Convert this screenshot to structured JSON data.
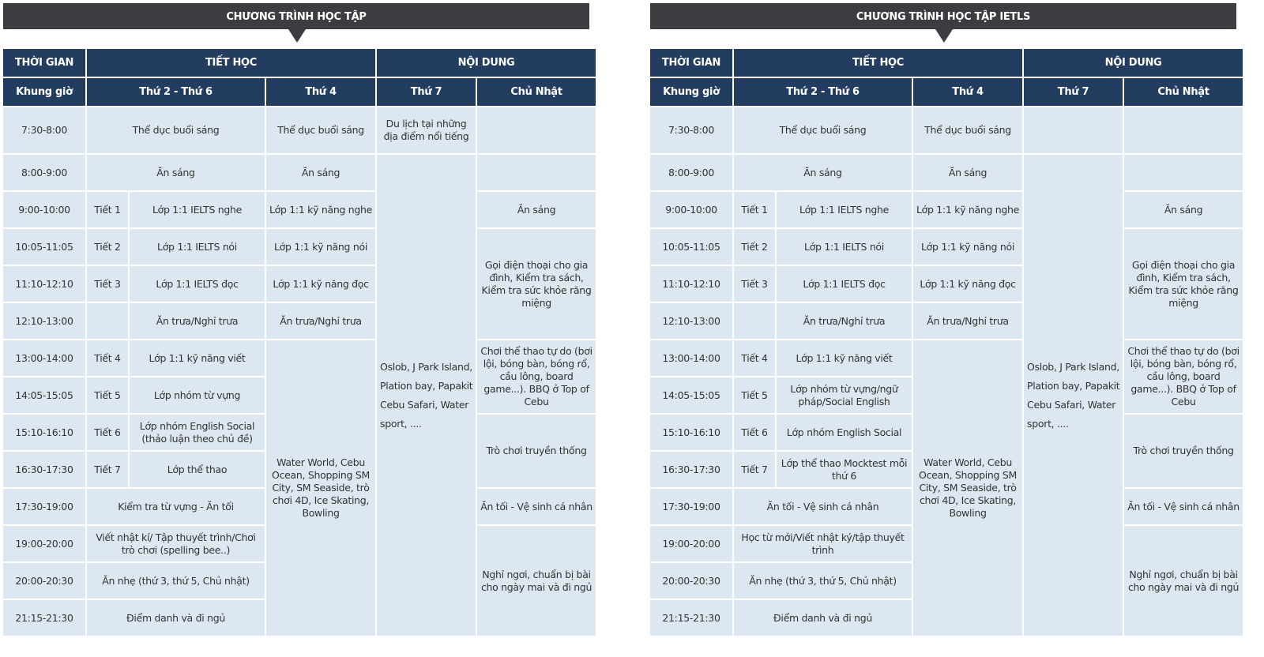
{
  "tables": [
    {
      "banner": "CHƯƠNG TRÌNH HỌC TẬP",
      "headers": {
        "time": "THỜI GIAN",
        "lessons": "TIẾT HỌC",
        "content": "NỘI DUNG",
        "slot": "Khung giờ",
        "weekdays": "Thứ 2 - Thứ 6",
        "wed": "Thứ 4",
        "sat": "Thứ 7",
        "sun": "Chủ Nhật"
      },
      "rows": [
        {
          "time": "7:30-8:00",
          "main": "Thể dục buổi sáng",
          "wed": "Thể dục buổi sáng"
        },
        {
          "time": "8:00-9:00",
          "main": "Ăn sáng",
          "wed": "Ăn sáng"
        },
        {
          "time": "9:00-10:00",
          "tiet": "Tiết 1",
          "main": "Lớp 1:1 IELTS nghe",
          "wed": "Lớp 1:1 kỹ năng nghe"
        },
        {
          "time": "10:05-11:05",
          "tiet": "Tiết 2",
          "main": "Lớp 1:1 IELTS nói",
          "wed": "Lớp 1:1 kỹ năng nói"
        },
        {
          "time": "11:10-12:10",
          "tiet": "Tiết 3",
          "main": "Lớp 1:1 IELTS đọc",
          "wed": "Lớp 1:1 kỹ năng đọc"
        },
        {
          "time": "12:10-13:00",
          "tiet": "",
          "main": "Ăn trưa/Nghỉ trưa",
          "wed": "Ăn trưa/Nghỉ trưa"
        },
        {
          "time": "13:00-14:00",
          "tiet": "Tiết 4",
          "main": "Lớp 1:1 kỹ năng viết",
          "wed": "Water World, Cebu Ocean, Shopping SM City, SM Seaside, trò chơi 4D, Ice Skating, Bowling"
        },
        {
          "time": "14:05-15:05",
          "tiet": "Tiết 5",
          "main": "Lớp nhóm từ vựng"
        },
        {
          "time": "15:10-16:10",
          "tiet": "Tiết 6",
          "main": "Lớp nhóm English Social (thảo luận theo chủ đề)"
        },
        {
          "time": "16:30-17:30",
          "tiet": "Tiết 7",
          "main": "Lớp thể thao"
        },
        {
          "time": "17:30-19:00",
          "main": "Kiểm tra từ vựng - Ăn tối"
        },
        {
          "time": "19:00-20:00",
          "main": "Viết nhật kí/ Tập thuyết trình/Chơi trò chơi (spelling bee..)"
        },
        {
          "time": "20:00-20:30",
          "main": "Ăn nhẹ (thứ 3, thứ 5, Chủ nhật)"
        },
        {
          "time": "21:15-21:30",
          "main": "Điểm danh và đi ngủ"
        }
      ],
      "sat": [
        "Du lịch tại những địa điểm nổi tiếng",
        "Oslob, J Park Island, Plation bay, Papakit Cebu  Safari, Water sport, ...."
      ],
      "sun": [
        "",
        "",
        "Ăn sáng",
        "Gọi điện thoại cho gia đình, Kiểm tra sách, Kiểm tra sức khỏe răng miệng",
        "Chơi thể thao tự do (bơi lội, bóng bàn, bóng rổ, cầu lông, board game...). BBQ ở Top of Cebu",
        "Trò chơi truyền thống",
        "Ăn tối - Vệ sinh cá nhân",
        "Nghỉ ngơi, chuẩn bị bài cho ngày mai và đi ngủ"
      ]
    },
    {
      "banner": "CHƯƠNG TRÌNH HỌC TẬP IETLS",
      "headers": {
        "time": "THỜI GIAN",
        "lessons": "TIẾT HỌC",
        "content": "NỘI DUNG",
        "slot": "Khung giờ",
        "weekdays": "Thứ 2 - Thứ 6",
        "wed": "Thứ 4",
        "sat": "Thứ 7",
        "sun": "Chủ Nhật"
      },
      "rows": [
        {
          "time": "7:30-8:00",
          "main": "Thể dục buổi sáng",
          "wed": "Thể dục buổi sáng"
        },
        {
          "time": "8:00-9:00",
          "main": "Ăn sáng",
          "wed": "Ăn sáng"
        },
        {
          "time": "9:00-10:00",
          "tiet": "Tiết 1",
          "main": "Lớp 1:1 IELTS nghe",
          "wed": "Lớp 1:1 kỹ năng nghe"
        },
        {
          "time": "10:05-11:05",
          "tiet": "Tiết 2",
          "main": "Lớp 1:1 IELTS nói",
          "wed": "Lớp 1:1 kỹ năng nói"
        },
        {
          "time": "11:10-12:10",
          "tiet": "Tiết 3",
          "main": "Lớp 1:1 IELTS đọc",
          "wed": "Lớp 1:1 kỹ năng đọc"
        },
        {
          "time": "12:10-13:00",
          "tiet": "",
          "main": "Ăn trưa/Nghỉ trưa",
          "wed": "Ăn trưa/Nghỉ trưa"
        },
        {
          "time": "13:00-14:00",
          "tiet": "Tiết 4",
          "main": "Lớp 1:1 kỹ năng viết",
          "wed": "Water World, Cebu Ocean, Shopping SM City, SM Seaside, trò chơi 4D, Ice Skating, Bowling"
        },
        {
          "time": "14:05-15:05",
          "tiet": "Tiết 5",
          "main": "Lớp nhóm từ vựng/ngữ pháp/Social English"
        },
        {
          "time": "15:10-16:10",
          "tiet": "Tiết 6",
          "main": "Lớp nhóm English Social"
        },
        {
          "time": "16:30-17:30",
          "tiet": "Tiết 7",
          "main": "Lớp thể thao Mocktest mỗi thứ 6"
        },
        {
          "time": "17:30-19:00",
          "main": "Ăn tối - Vệ sinh cá nhân"
        },
        {
          "time": "19:00-20:00",
          "main": "Học từ mới/Viết nhật ký/tập thuyết trình"
        },
        {
          "time": "20:00-20:30",
          "main": "Ăn nhẹ (thứ 3, thứ 5, Chủ nhật)"
        },
        {
          "time": "21:15-21:30",
          "main": "Điểm danh và đi ngủ"
        }
      ],
      "sat": [
        "",
        "Oslob, J Park Island, Plation bay, Papakit Cebu  Safari, Water sport, ...."
      ],
      "sun": [
        "",
        "",
        "Ăn sáng",
        "Gọi điện thoại cho gia đình, Kiểm tra sách, Kiểm tra sức khỏe răng miệng",
        "Chơi thể thao tự do (bơi lội, bóng bàn, bóng rổ, cầu lông, board game...). BBQ ở Top of Cebu",
        "Trò chơi truyền thống",
        "Ăn tối - Vệ sinh cá nhân",
        "Nghỉ ngơi, chuẩn bị bài cho ngày mai và đi ngủ"
      ]
    }
  ]
}
